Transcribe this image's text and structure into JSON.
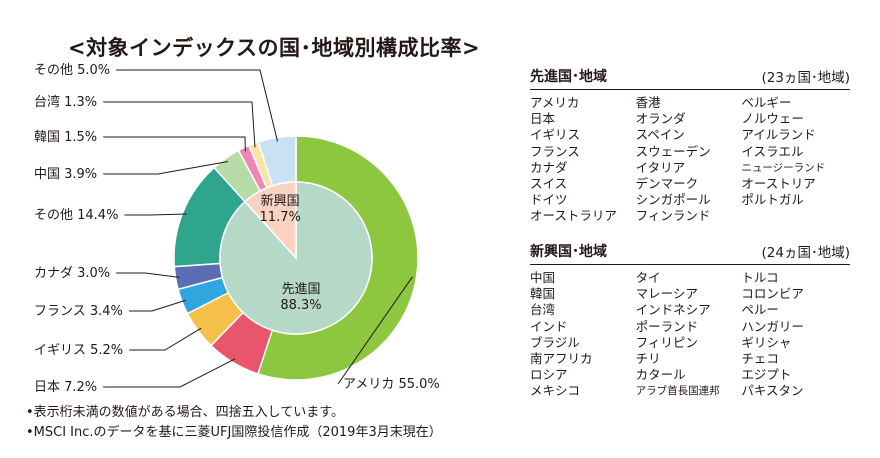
{
  "title": "<対象インデックスの国･地域別構成比率>",
  "chart_data": {
    "type": "pie",
    "title": "<対象インデックスの国･地域別構成比率>",
    "outer_ring": [
      {
        "label": "アメリカ",
        "value": 55.0,
        "display": "アメリカ 55.0%",
        "color": "#8dc63f"
      },
      {
        "label": "日本",
        "value": 7.2,
        "display": "日本 7.2%",
        "color": "#e9556a"
      },
      {
        "label": "イギリス",
        "value": 5.2,
        "display": "イギリス 5.2%",
        "color": "#f5c04a"
      },
      {
        "label": "フランス",
        "value": 3.4,
        "display": "フランス 3.4%",
        "color": "#2ea7e0"
      },
      {
        "label": "カナダ",
        "value": 3.0,
        "display": "カナダ 3.0%",
        "color": "#5b6db3"
      },
      {
        "label": "その他",
        "value": 14.4,
        "display": "その他 14.4%",
        "color": "#2fa58e"
      },
      {
        "label": "中国",
        "value": 3.9,
        "display": "中国 3.9%",
        "color": "#b7dba7"
      },
      {
        "label": "韓国",
        "value": 1.5,
        "display": "韓国 1.5%",
        "color": "#ee87b4"
      },
      {
        "label": "台湾",
        "value": 1.3,
        "display": "台湾 1.3%",
        "color": "#fbe3a7"
      },
      {
        "label": "その他",
        "value": 5.0,
        "display": "その他 5.0%",
        "color": "#c8e1f4"
      }
    ],
    "inner_pie": [
      {
        "label": "先進国",
        "value": 88.3,
        "display": "88.3%",
        "color": "#b6d8c6"
      },
      {
        "label": "新興国",
        "value": 11.7,
        "display": "11.7%",
        "color": "#f9d2c2"
      }
    ]
  },
  "notes": [
    "•表示桁未満の数値がある場合、四捨五入しています。",
    "•MSCI Inc.のデータを基に三菱UFJ国際投信作成（2019年3月末現在）"
  ],
  "developed": {
    "name": "先進国･地域",
    "count": "(23ヵ国･地域)",
    "columns": [
      [
        "アメリカ",
        "日本",
        "イギリス",
        "フランス",
        "カナダ",
        "スイス",
        "ドイツ",
        "オーストラリア"
      ],
      [
        "香港",
        "オランダ",
        "スペイン",
        "スウェーデン",
        "イタリア",
        "デンマーク",
        "シンガポール",
        "フィンランド"
      ],
      [
        "ベルギー",
        "ノルウェー",
        "アイルランド",
        "イスラエル",
        "ニュージーランド",
        "オーストリア",
        "ポルトガル"
      ]
    ]
  },
  "emerging": {
    "name": "新興国･地域",
    "count": "(24ヵ国･地域)",
    "columns": [
      [
        "中国",
        "韓国",
        "台湾",
        "インド",
        "ブラジル",
        "南アフリカ",
        "ロシア",
        "メキシコ"
      ],
      [
        "タイ",
        "マレーシア",
        "インドネシア",
        "ポーランド",
        "フィリピン",
        "チリ",
        "カタール",
        "アラブ首長国連邦"
      ],
      [
        "トルコ",
        "コロンビア",
        "ペルー",
        "ハンガリー",
        "ギリシャ",
        "チェコ",
        "エジプト",
        "パキスタン"
      ]
    ]
  }
}
